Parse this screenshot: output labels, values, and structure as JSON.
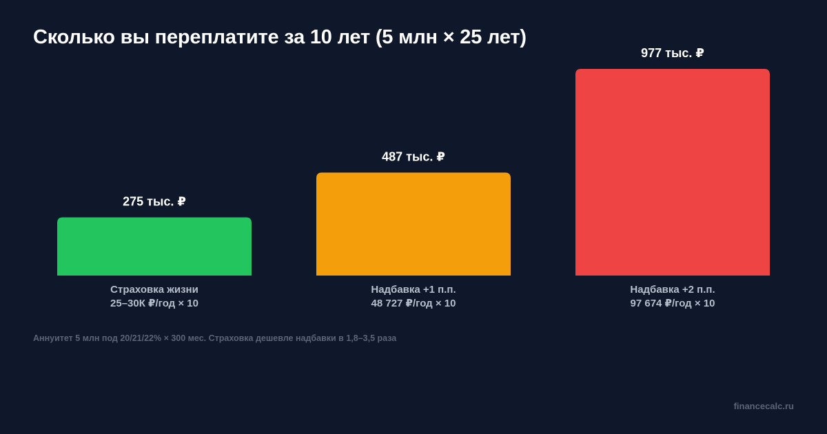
{
  "chart_data": {
    "type": "bar",
    "title": "Сколько вы переплатите за 10 лет (5 млн × 25 лет)",
    "categories": [
      "Страховка жизни\n25–30К ₽/год × 10",
      "Надбавка +1 п.п.\n48 727 ₽/год × 10",
      "Надбавка +2 п.п.\n97 674 ₽/год × 10"
    ],
    "category_lines": [
      [
        "Страховка жизни",
        "25–30К ₽/год × 10"
      ],
      [
        "Надбавка +1 п.п.",
        "48 727 ₽/год × 10"
      ],
      [
        "Надбавка +2 п.п.",
        "97 674 ₽/год × 10"
      ]
    ],
    "values": [
      275,
      487,
      977
    ],
    "value_labels": [
      "275 тыс. ₽",
      "487 тыс. ₽",
      "977 тыс. ₽"
    ],
    "unit": "тыс. ₽",
    "colors": [
      "#22c55e",
      "#f59e0b",
      "#ef4444"
    ],
    "xlabel": "",
    "ylabel": "",
    "ylim": [
      0,
      977
    ],
    "grid": false,
    "legend": "none"
  },
  "footnote": "Аннуитет 5 млн под 20/21/22% × 300 мес. Страховка дешевле надбавки в 1,8–3,5 раза",
  "watermark": "financecalc.ru",
  "background_color": "#0f172a"
}
